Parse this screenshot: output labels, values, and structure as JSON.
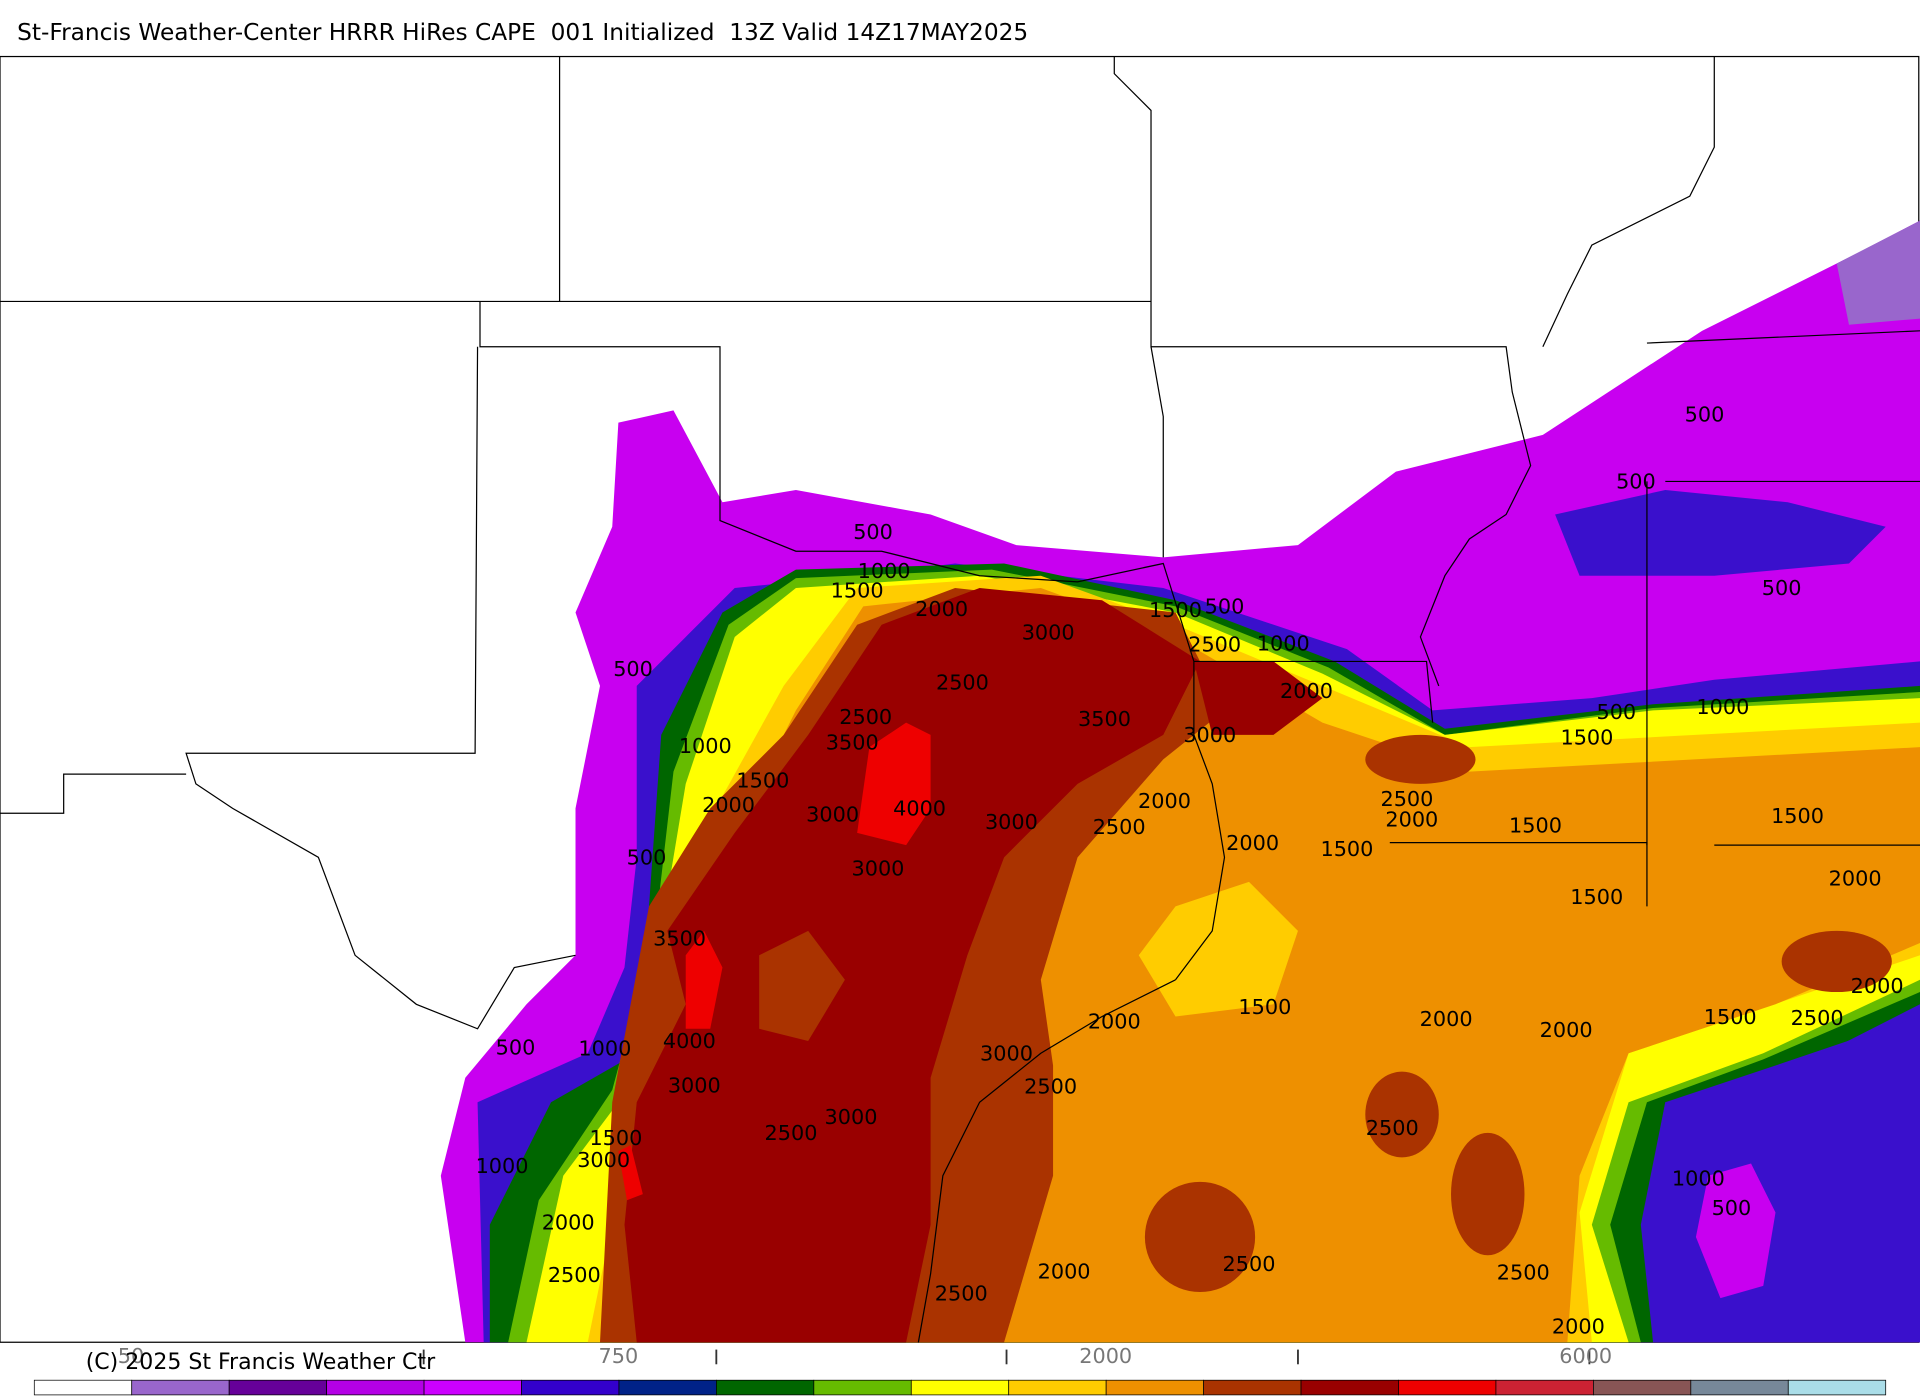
{
  "header": {
    "title": "St-Francis Weather-Center HRRR HiRes CAPE  001 Initialized  13Z Valid 14Z17MAY2025"
  },
  "map": {
    "contour_labels": [
      500,
      1000,
      1500,
      2000,
      3000,
      1500,
      500,
      2500,
      1000,
      500,
      2500,
      2000,
      3500,
      2500,
      3500,
      1000,
      3000,
      1500,
      2000,
      4000,
      3000,
      3000,
      2000,
      2500,
      2500,
      2000,
      2000,
      1500,
      1500,
      500,
      3000,
      1500,
      3500,
      2000,
      1500,
      2000,
      2000,
      4000,
      500,
      1000,
      3000,
      2500,
      3000,
      3000,
      2500,
      1500,
      3000,
      1000,
      2500,
      2000,
      2500,
      2000,
      2500,
      2500,
      2500,
      2000,
      500,
      500,
      500,
      500,
      1000,
      1500,
      1500,
      2000,
      2000,
      1500,
      2500,
      1000,
      500
    ]
  },
  "colorbar": {
    "labels": [
      50,
      750,
      2000,
      6000
    ],
    "colors": [
      "#ffffff",
      "#9966cc",
      "#660099",
      "#b400e6",
      "#cc00ff",
      "#3300cc",
      "#002288",
      "#006600",
      "#66bb00",
      "#ffff00",
      "#ffcc00",
      "#ee9000",
      "#aa3300",
      "#990000",
      "#ee0000",
      "#cc2233",
      "#885555",
      "#778899",
      "#aadde8"
    ]
  },
  "footer": {
    "copyright": "(C) 2025 St Francis Weather Ctr"
  }
}
